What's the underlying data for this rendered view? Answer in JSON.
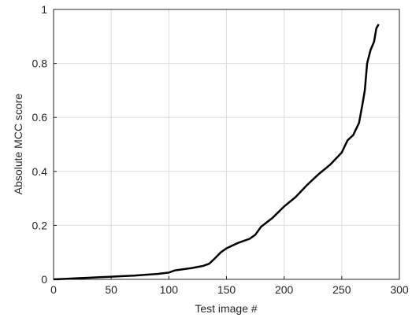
{
  "chart_data": {
    "type": "line",
    "xlabel": "Test image #",
    "ylabel": "Absolute MCC score",
    "x": [
      0,
      10,
      20,
      30,
      40,
      50,
      60,
      70,
      80,
      90,
      100,
      105,
      110,
      120,
      130,
      135,
      140,
      145,
      150,
      160,
      170,
      175,
      180,
      190,
      200,
      210,
      220,
      230,
      240,
      250,
      255,
      260,
      265,
      268,
      270,
      272,
      275,
      278,
      280,
      282
    ],
    "series": [
      {
        "color": "#000000",
        "values": [
          0,
          0.002,
          0.004,
          0.006,
          0.008,
          0.01,
          0.012,
          0.014,
          0.017,
          0.02,
          0.025,
          0.033,
          0.036,
          0.042,
          0.05,
          0.058,
          0.078,
          0.1,
          0.115,
          0.135,
          0.15,
          0.165,
          0.195,
          0.228,
          0.27,
          0.305,
          0.35,
          0.39,
          0.425,
          0.47,
          0.515,
          0.535,
          0.58,
          0.65,
          0.7,
          0.8,
          0.85,
          0.88,
          0.93,
          0.945
        ]
      }
    ],
    "xlim": [
      0,
      300
    ],
    "xticks": [
      0,
      50,
      100,
      150,
      200,
      250,
      300
    ],
    "ylim": [
      0,
      1
    ],
    "yticks": [
      0,
      0.2,
      0.4,
      0.6,
      0.8,
      1
    ],
    "grid": true
  }
}
